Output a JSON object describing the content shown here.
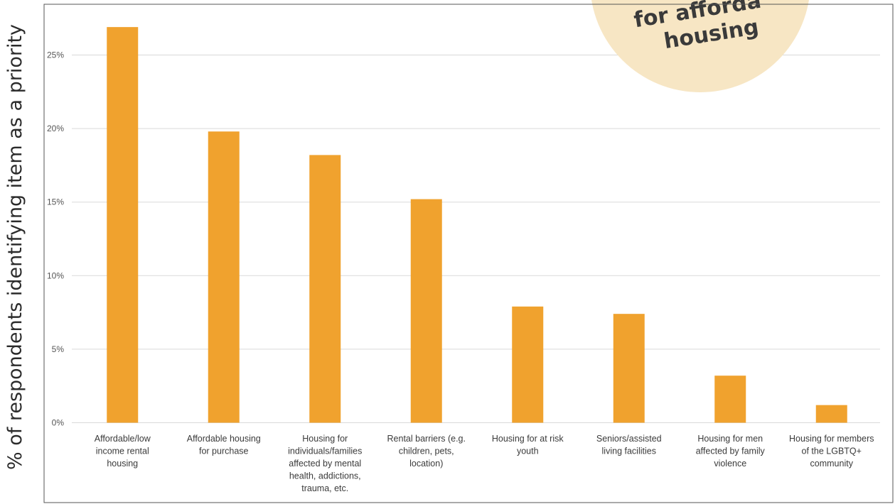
{
  "chart_data": {
    "type": "bar",
    "ylabel": "% of respondents identifying item as a priority",
    "xlabel": "",
    "ylim": [
      0,
      27
    ],
    "y_ticks": [
      0,
      5,
      10,
      15,
      20,
      25
    ],
    "y_tick_labels": [
      "0%",
      "5%",
      "10%",
      "15%",
      "20%",
      "25%"
    ],
    "grid": true,
    "categories": [
      "Affordable/low income rental housing",
      "Affordable housing for purchase",
      "Housing for individuals/families affected by mental health, addictions, trauma, etc.",
      "Rental barriers (e.g. children, pets, location)",
      "Housing for at risk youth",
      "Seniors/assisted living facilities",
      "Housing for men affected by family violence",
      "Housing for members of the LGBTQ+ community"
    ],
    "category_lines": [
      [
        "Affordable/low",
        "income rental",
        "housing"
      ],
      [
        "Affordable housing",
        "for purchase"
      ],
      [
        "Housing for",
        "individuals/families",
        "affected by mental",
        "health, addictions,",
        "trauma, etc."
      ],
      [
        "Rental barriers (e.g.",
        "children, pets,",
        "location)"
      ],
      [
        "Housing for at risk",
        "youth"
      ],
      [
        "Seniors/assisted",
        "living facilities"
      ],
      [
        "Housing for men",
        "affected by family",
        "violence"
      ],
      [
        "Housing for members",
        "of the LGBTQ+",
        "community"
      ]
    ],
    "values": [
      26.9,
      19.8,
      18.2,
      15.2,
      7.9,
      7.4,
      3.2,
      1.2
    ]
  },
  "badge": {
    "lines": [
      "for afforda",
      "housing"
    ]
  },
  "colors": {
    "bar": "#F0A22E",
    "grid": "#d9d9d9",
    "axis_border": "#555555",
    "badge_fill": "#F7E6C4",
    "badge_text": "#3a3a3a"
  }
}
